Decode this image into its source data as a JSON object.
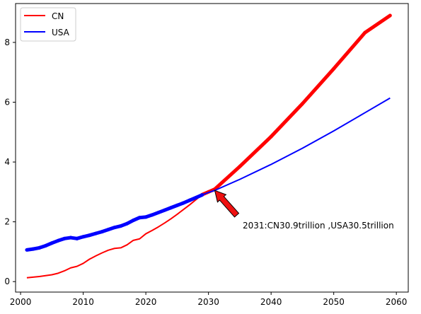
{
  "chart_data": {
    "type": "line",
    "title": "",
    "xlabel": "",
    "ylabel": "",
    "xlim": [
      1999.2,
      2061.9
    ],
    "ylim": [
      -0.35,
      9.3
    ],
    "x_ticks": [
      2000,
      2010,
      2020,
      2030,
      2040,
      2050,
      2060
    ],
    "y_ticks": [
      0,
      2,
      4,
      6,
      8
    ],
    "grid": false,
    "legend": "top-left",
    "series": [
      {
        "name": "CN",
        "color": "#ff0000",
        "x": [
          2001,
          2002,
          2003,
          2004,
          2005,
          2006,
          2007,
          2008,
          2009,
          2010,
          2011,
          2012,
          2013,
          2014,
          2015,
          2016,
          2017,
          2018,
          2019,
          2020,
          2021,
          2022,
          2023,
          2024,
          2025,
          2026,
          2027,
          2028,
          2029,
          2030,
          2031,
          2035,
          2040,
          2045,
          2050,
          2055,
          2059
        ],
        "y": [
          0.13,
          0.15,
          0.17,
          0.2,
          0.23,
          0.28,
          0.36,
          0.46,
          0.51,
          0.61,
          0.75,
          0.86,
          0.96,
          1.05,
          1.11,
          1.13,
          1.23,
          1.38,
          1.43,
          1.6,
          1.71,
          1.83,
          1.96,
          2.1,
          2.25,
          2.41,
          2.57,
          2.74,
          2.91,
          3.0,
          3.09,
          3.85,
          4.85,
          5.95,
          7.12,
          8.33,
          8.9
        ]
      },
      {
        "name": "USA",
        "color": "#0000ff",
        "x": [
          2001,
          2002,
          2003,
          2004,
          2005,
          2006,
          2007,
          2008,
          2009,
          2010,
          2011,
          2012,
          2013,
          2014,
          2015,
          2016,
          2017,
          2018,
          2019,
          2020,
          2021,
          2022,
          2023,
          2024,
          2025,
          2026,
          2027,
          2028,
          2029,
          2030,
          2031,
          2035,
          2040,
          2045,
          2050,
          2055,
          2059
        ],
        "y": [
          1.06,
          1.09,
          1.13,
          1.2,
          1.29,
          1.37,
          1.44,
          1.47,
          1.44,
          1.5,
          1.55,
          1.61,
          1.67,
          1.74,
          1.81,
          1.86,
          1.94,
          2.05,
          2.14,
          2.16,
          2.23,
          2.31,
          2.39,
          2.47,
          2.55,
          2.63,
          2.72,
          2.81,
          2.9,
          2.98,
          3.05,
          3.42,
          3.92,
          4.46,
          5.04,
          5.65,
          6.14
        ]
      }
    ],
    "annotation": {
      "text": "2031:CN30.9trillion ,USA30.5trillion",
      "x": 2031,
      "y": 3.05
    }
  }
}
